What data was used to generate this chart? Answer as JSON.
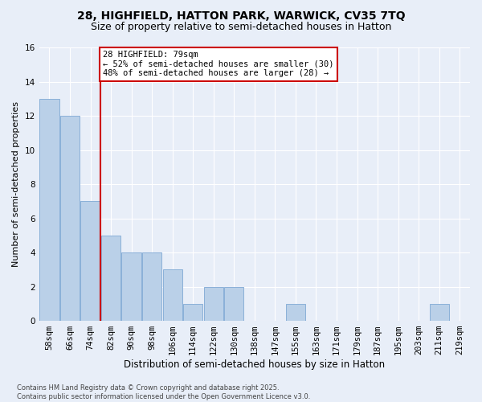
{
  "title1": "28, HIGHFIELD, HATTON PARK, WARWICK, CV35 7TQ",
  "title2": "Size of property relative to semi-detached houses in Hatton",
  "xlabel": "Distribution of semi-detached houses by size in Hatton",
  "ylabel": "Number of semi-detached properties",
  "bar_labels": [
    "58sqm",
    "66sqm",
    "74sqm",
    "82sqm",
    "90sqm",
    "98sqm",
    "106sqm",
    "114sqm",
    "122sqm",
    "130sqm",
    "138sqm",
    "147sqm",
    "155sqm",
    "163sqm",
    "171sqm",
    "179sqm",
    "187sqm",
    "195sqm",
    "203sqm",
    "211sqm",
    "219sqm"
  ],
  "bar_values": [
    13,
    12,
    7,
    5,
    4,
    4,
    3,
    1,
    2,
    2,
    0,
    0,
    1,
    0,
    0,
    0,
    0,
    0,
    0,
    1,
    0
  ],
  "bar_color_normal": "#bad0e8",
  "bar_edge_color": "#8ab0d8",
  "vline_x": 2.5,
  "vline_color": "#cc0000",
  "annotation_text": "28 HIGHFIELD: 79sqm\n← 52% of semi-detached houses are smaller (30)\n48% of semi-detached houses are larger (28) →",
  "annotation_box_color": "#ffffff",
  "annotation_box_edge": "#cc0000",
  "ylim": [
    0,
    16
  ],
  "yticks": [
    0,
    2,
    4,
    6,
    8,
    10,
    12,
    14,
    16
  ],
  "footnote": "Contains HM Land Registry data © Crown copyright and database right 2025.\nContains public sector information licensed under the Open Government Licence v3.0.",
  "background_color": "#e8eef8",
  "grid_color": "#ffffff",
  "title1_fontsize": 10,
  "title2_fontsize": 9,
  "xlabel_fontsize": 8.5,
  "ylabel_fontsize": 8,
  "tick_fontsize": 7.5,
  "annotation_fontsize": 7.5,
  "footnote_fontsize": 6
}
